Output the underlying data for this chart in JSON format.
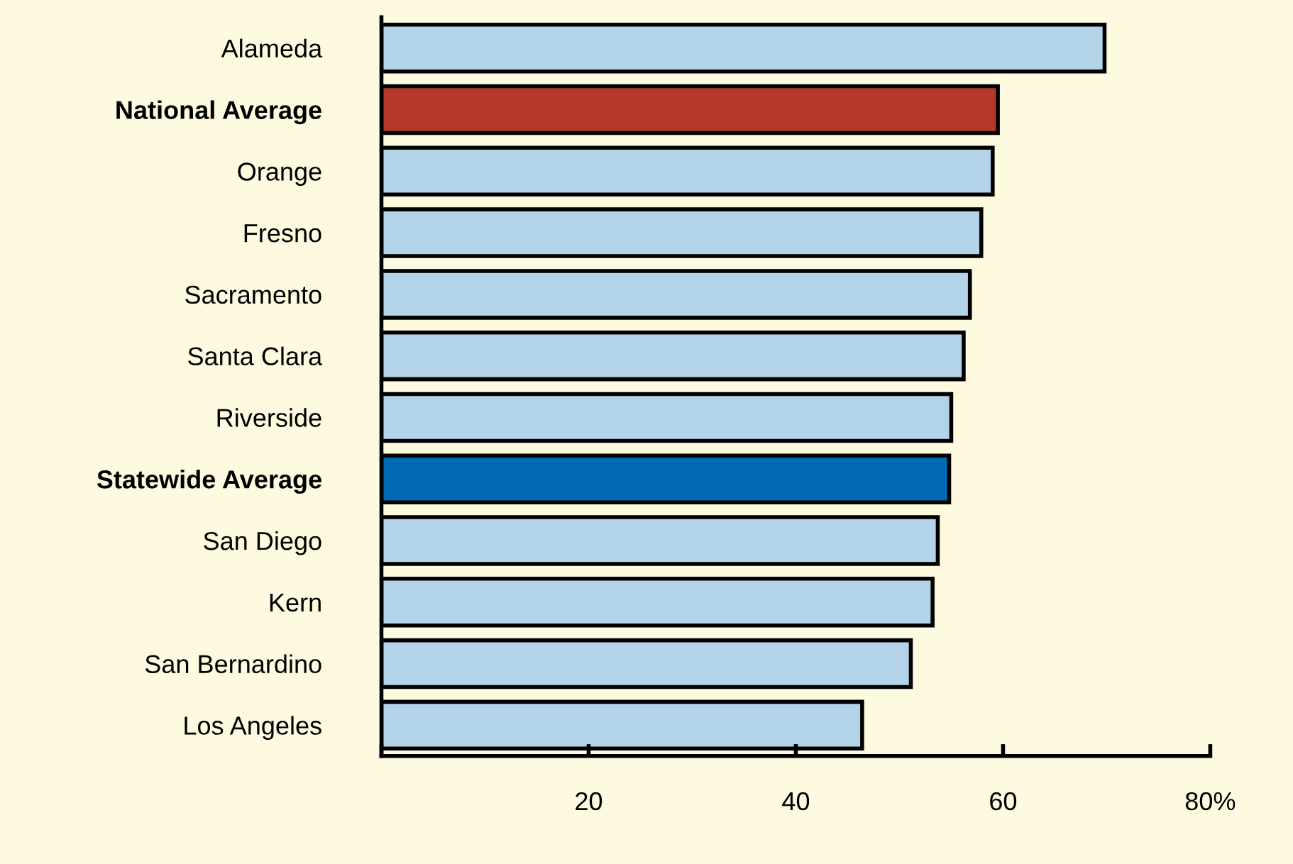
{
  "chart_data": {
    "type": "bar",
    "orientation": "horizontal",
    "categories": [
      "Alameda",
      "National Average",
      "Orange",
      "Fresno",
      "Sacramento",
      "Santa Clara",
      "Riverside",
      "Statewide Average",
      "San Diego",
      "Kern",
      "San Bernardino",
      "Los Angeles"
    ],
    "values": [
      69.8,
      59.5,
      59,
      57.9,
      56.8,
      56.2,
      55,
      54.8,
      53.7,
      53.2,
      51.1,
      46.4
    ],
    "colors": [
      "#b3d3e8",
      "#b5392b",
      "#b3d3e8",
      "#b3d3e8",
      "#b3d3e8",
      "#b3d3e8",
      "#b3d3e8",
      "#0069b4",
      "#b3d3e8",
      "#b3d3e8",
      "#b3d3e8",
      "#b3d3e8"
    ],
    "xlim": [
      0,
      80
    ],
    "xticks": [
      {
        "value": 0,
        "label": null
      },
      20,
      40,
      60,
      {
        "value": 80,
        "label": "80%"
      }
    ],
    "grid": false,
    "legend": false
  }
}
